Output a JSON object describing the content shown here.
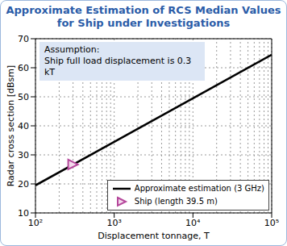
{
  "chart_data": {
    "type": "line",
    "title": "Approximate Estimation of RCS Median Values\nfor Ship under Investigations",
    "annotation": "Assumption:\nShip full load displacement is 0.3 kT",
    "xlabel": "Displacement tonnage, T",
    "ylabel": "Radar cross section [dBsm]",
    "log": "x",
    "grid": true,
    "legend": "lower right",
    "xlim": [
      100,
      100000
    ],
    "xticks": [
      {
        "value": 100,
        "label": "10²"
      },
      {
        "value": 1000,
        "label": "10³"
      },
      {
        "value": 10000,
        "label": "10⁴"
      },
      {
        "value": 100000,
        "label": "10⁵"
      }
    ],
    "ylim": [
      10,
      70
    ],
    "yticks": [
      10,
      20,
      30,
      40,
      50,
      60,
      70
    ],
    "series": [
      {
        "name": "Approximate estimation (3 GHz)",
        "type": "line",
        "color": "#000000",
        "x": [
          100,
          1000,
          10000,
          100000
        ],
        "values": [
          19.5,
          34.5,
          49.5,
          64.5
        ]
      },
      {
        "name": "Ship (length 39.5 m)",
        "type": "scatter",
        "marker": "triangle-right",
        "color": "#b5479b",
        "x": [
          300
        ],
        "values": [
          26.7
        ]
      }
    ]
  }
}
